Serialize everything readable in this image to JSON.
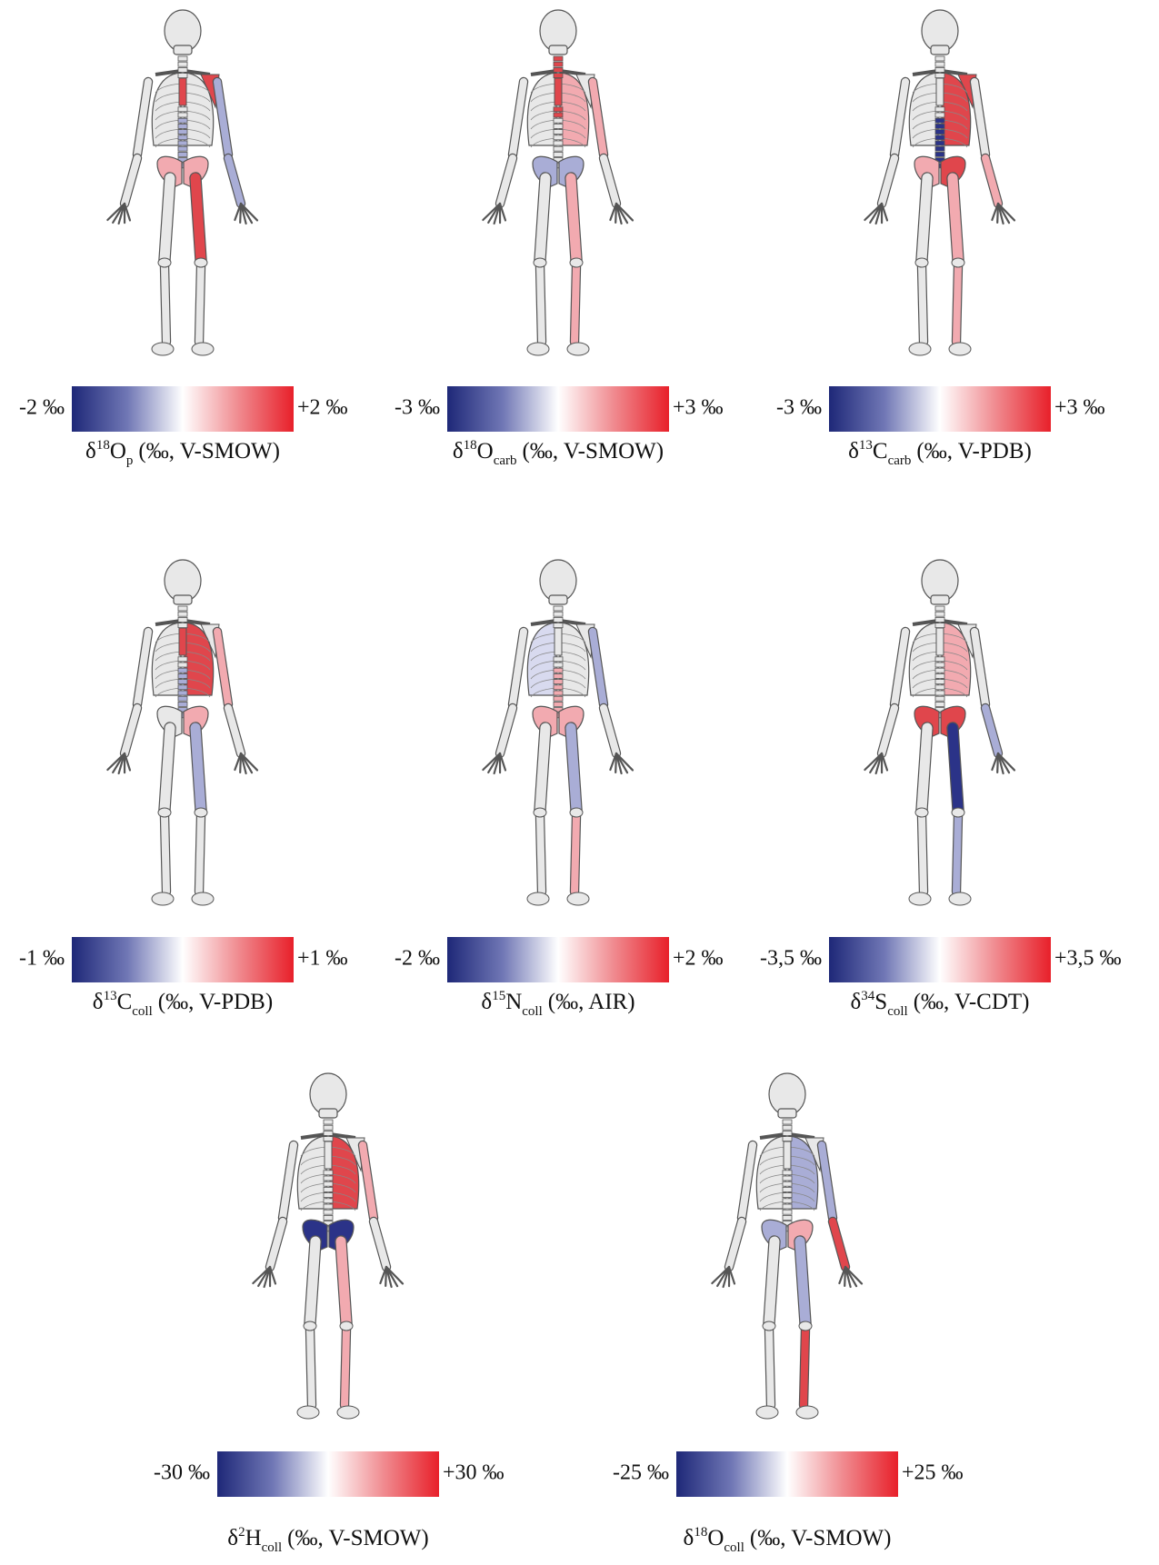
{
  "panels": [
    {
      "min_label": "-2 ‰",
      "max_label": "+2 ‰",
      "title": {
        "delta": "δ",
        "isotope": "18",
        "element": "O",
        "subscript": "p",
        "rest": "(‰, V-SMOW)"
      }
    },
    {
      "min_label": "-3 ‰",
      "max_label": "+3 ‰",
      "title": {
        "delta": "δ",
        "isotope": "18",
        "element": "O",
        "subscript": "carb",
        "rest": "(‰, V-SMOW)"
      }
    },
    {
      "min_label": "-3 ‰",
      "max_label": "+3 ‰",
      "title": {
        "delta": "δ",
        "isotope": "13",
        "element": "C",
        "subscript": "carb",
        "rest": "(‰, V-PDB)"
      }
    },
    {
      "min_label": "-1 ‰",
      "max_label": "+1 ‰",
      "title": {
        "delta": "δ",
        "isotope": "13",
        "element": "C",
        "subscript": "coll",
        "rest": "(‰, V-PDB)"
      }
    },
    {
      "min_label": "-2 ‰",
      "max_label": "+2 ‰",
      "title": {
        "delta": "δ",
        "isotope": "15",
        "element": "N",
        "subscript": "coll",
        "rest": "(‰, AIR)"
      }
    },
    {
      "min_label": "-3,5 ‰",
      "max_label": "+3,5 ‰",
      "title": {
        "delta": "δ",
        "isotope": "34",
        "element": "S",
        "subscript": "coll",
        "rest": "(‰, V-CDT)"
      }
    },
    {
      "min_label": "-30 ‰",
      "max_label": "+30 ‰",
      "title": {
        "delta": "δ",
        "isotope": "2",
        "element": "H",
        "subscript": "coll",
        "rest": "(‰, V-SMOW)"
      }
    },
    {
      "min_label": "-25 ‰",
      "max_label": "+25 ‰",
      "title": {
        "delta": "δ",
        "isotope": "18",
        "element": "O",
        "subscript": "coll",
        "rest": "(‰, V-SMOW)"
      }
    }
  ]
}
